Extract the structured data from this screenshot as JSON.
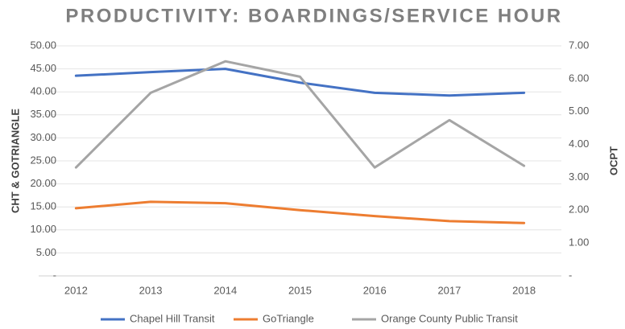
{
  "chart_data": {
    "type": "line",
    "title": "PRODUCTIVITY: BOARDINGS/SERVICE HOUR",
    "y_label": "CHT & GOTRIANGLE",
    "y2_label": "OCPT",
    "categories": [
      "2012",
      "2013",
      "2014",
      "2015",
      "2016",
      "2017",
      "2018"
    ],
    "series": [
      {
        "name": "Chapel Hill Transit",
        "color": "#4472c4",
        "values": [
          43.5,
          44.3,
          45.0,
          42.0,
          39.8,
          39.2,
          39.8
        ]
      },
      {
        "name": "GoTriangle",
        "color": "#ed7d31",
        "values": [
          14.7,
          16.1,
          15.8,
          14.3,
          13.0,
          11.9,
          11.5
        ]
      },
      {
        "name": "Orange County Public Transit",
        "color": "#a5a5a5",
        "axis": "y2",
        "values": [
          3.3,
          5.57,
          6.53,
          6.06,
          3.3,
          4.74,
          3.35
        ]
      }
    ],
    "ylim": [
      0,
      50
    ],
    "yticks": [
      {
        "value": 0,
        "label": "-"
      },
      {
        "value": 5,
        "label": "5.00"
      },
      {
        "value": 10,
        "label": "10.00"
      },
      {
        "value": 15,
        "label": "15.00"
      },
      {
        "value": 20,
        "label": "20.00"
      },
      {
        "value": 25,
        "label": "25.00"
      },
      {
        "value": 30,
        "label": "30.00"
      },
      {
        "value": 35,
        "label": "35.00"
      },
      {
        "value": 40,
        "label": "40.00"
      },
      {
        "value": 45,
        "label": "45.00"
      },
      {
        "value": 50,
        "label": "50.00"
      }
    ],
    "y2lim": [
      0,
      7
    ],
    "y2ticks": [
      {
        "value": 0,
        "label": "-"
      },
      {
        "value": 1,
        "label": "1.00"
      },
      {
        "value": 2,
        "label": "2.00"
      },
      {
        "value": 3,
        "label": "3.00"
      },
      {
        "value": 4,
        "label": "4.00"
      },
      {
        "value": 5,
        "label": "5.00"
      },
      {
        "value": 6,
        "label": "6.00"
      },
      {
        "value": 7,
        "label": "7.00"
      }
    ],
    "grid": true,
    "legend": "bottom"
  }
}
